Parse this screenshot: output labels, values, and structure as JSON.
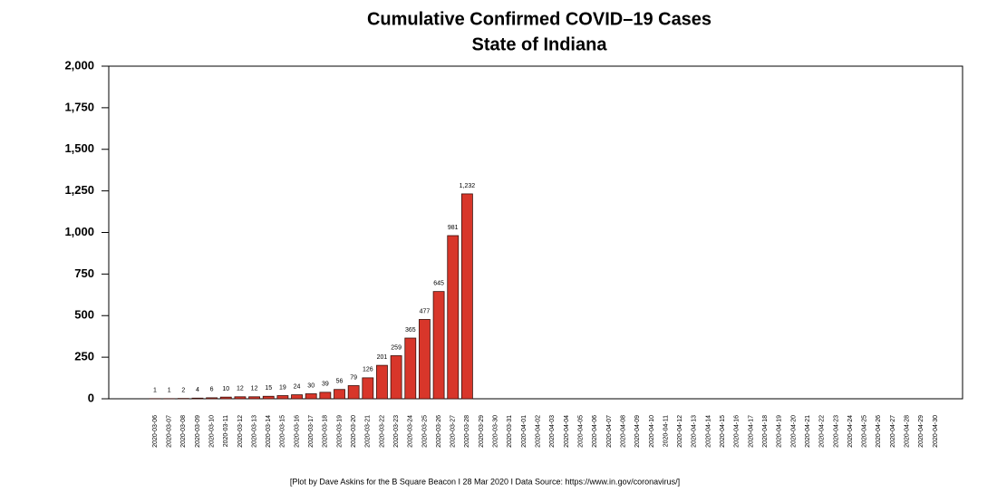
{
  "chart_data": {
    "type": "bar",
    "title": "Cumulative Confirmed COVID–19 Cases",
    "subtitle": "State of Indiana",
    "caption": "[Plot by Dave Askins for the B Square Beacon I 28 Mar 2020 I Data Source: https://www.in.gov/coronavirus/]",
    "categories": [
      "2020-03-06",
      "2020-03-07",
      "2020-03-08",
      "2020-03-09",
      "2020-03-10",
      "2020-03-11",
      "2020-03-12",
      "2020-03-13",
      "2020-03-14",
      "2020-03-15",
      "2020-03-16",
      "2020-03-17",
      "2020-03-18",
      "2020-03-19",
      "2020-03-20",
      "2020-03-21",
      "2020-03-22",
      "2020-03-23",
      "2020-03-24",
      "2020-03-25",
      "2020-03-26",
      "2020-03-27",
      "2020-03-28",
      "2020-03-29",
      "2020-03-30",
      "2020-03-31",
      "2020-04-01",
      "2020-04-02",
      "2020-04-03",
      "2020-04-04",
      "2020-04-05",
      "2020-04-06",
      "2020-04-07",
      "2020-04-08",
      "2020-04-09",
      "2020-04-10",
      "2020-04-11",
      "2020-04-12",
      "2020-04-13",
      "2020-04-14",
      "2020-04-15",
      "2020-04-16",
      "2020-04-17",
      "2020-04-18",
      "2020-04-19",
      "2020-04-20",
      "2020-04-21",
      "2020-04-22",
      "2020-04-23",
      "2020-04-24",
      "2020-04-25",
      "2020-04-26",
      "2020-04-27",
      "2020-04-28",
      "2020-04-29",
      "2020-04-30"
    ],
    "values": [
      1,
      1,
      2,
      4,
      6,
      10,
      12,
      12,
      15,
      19,
      24,
      30,
      39,
      56,
      79,
      126,
      201,
      259,
      365,
      477,
      645,
      981,
      1232,
      null,
      null,
      null,
      null,
      null,
      null,
      null,
      null,
      null,
      null,
      null,
      null,
      null,
      null,
      null,
      null,
      null,
      null,
      null,
      null,
      null,
      null,
      null,
      null,
      null,
      null,
      null,
      null,
      null,
      null,
      null,
      null,
      null
    ],
    "value_labels": [
      "1",
      "1",
      "2",
      "4",
      "6",
      "10",
      "12",
      "12",
      "15",
      "19",
      "24",
      "30",
      "39",
      "56",
      "79",
      "126",
      "201",
      "259",
      "365",
      "477",
      "645",
      "981",
      "1,232",
      null,
      null,
      null,
      null,
      null,
      null,
      null,
      null,
      null,
      null,
      null,
      null,
      null,
      null,
      null,
      null,
      null,
      null,
      null,
      null,
      null,
      null,
      null,
      null,
      null,
      null,
      null,
      null,
      null,
      null,
      null,
      null,
      null
    ],
    "color": "#d8362a",
    "ylim": [
      0,
      2000
    ],
    "yticks": [
      0,
      250,
      500,
      750,
      {
        "value": 1000,
        "label": "1,000"
      },
      {
        "value": 1250,
        "label": "1,250"
      },
      {
        "value": 1500,
        "label": "1,500"
      },
      {
        "value": 1750,
        "label": "1,750"
      },
      {
        "value": 2000,
        "label": "2,000"
      }
    ]
  }
}
